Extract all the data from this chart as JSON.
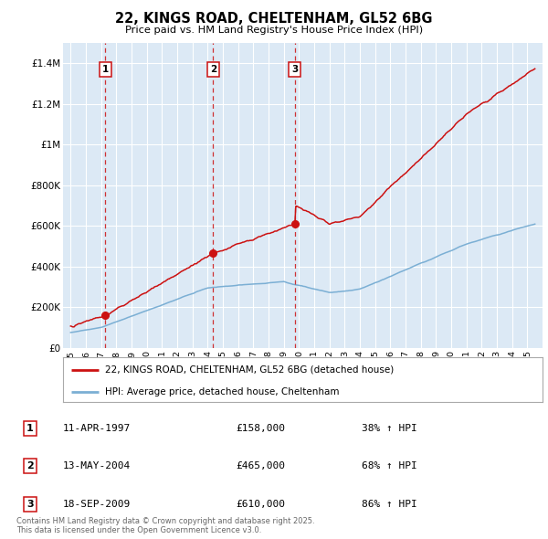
{
  "title": "22, KINGS ROAD, CHELTENHAM, GL52 6BG",
  "subtitle": "Price paid vs. HM Land Registry's House Price Index (HPI)",
  "plot_bg_color": "#dce9f5",
  "red_line_label": "22, KINGS ROAD, CHELTENHAM, GL52 6BG (detached house)",
  "blue_line_label": "HPI: Average price, detached house, Cheltenham",
  "purchases": [
    {
      "label": "1",
      "date": "11-APR-1997",
      "price": 158000,
      "hpi_pct": "38% ↑ HPI",
      "year": 1997.28
    },
    {
      "label": "2",
      "date": "13-MAY-2004",
      "price": 465000,
      "hpi_pct": "68% ↑ HPI",
      "year": 2004.37
    },
    {
      "label": "3",
      "date": "18-SEP-2009",
      "price": 610000,
      "hpi_pct": "86% ↑ HPI",
      "year": 2009.71
    }
  ],
  "footer": "Contains HM Land Registry data © Crown copyright and database right 2025.\nThis data is licensed under the Open Government Licence v3.0.",
  "ylim": [
    0,
    1500000
  ],
  "yticks": [
    0,
    200000,
    400000,
    600000,
    800000,
    1000000,
    1200000,
    1400000
  ],
  "ytick_labels": [
    "£0",
    "£200K",
    "£400K",
    "£600K",
    "£800K",
    "£1M",
    "£1.2M",
    "£1.4M"
  ],
  "xlim": [
    1994.5,
    2026.0
  ],
  "xtick_years": [
    1995,
    1996,
    1997,
    1998,
    1999,
    2000,
    2001,
    2002,
    2003,
    2004,
    2005,
    2006,
    2007,
    2008,
    2009,
    2010,
    2011,
    2012,
    2013,
    2014,
    2015,
    2016,
    2017,
    2018,
    2019,
    2020,
    2021,
    2022,
    2023,
    2024,
    2025
  ],
  "red_color": "#cc1111",
  "blue_color": "#7bafd4",
  "grid_color": "#ffffff"
}
